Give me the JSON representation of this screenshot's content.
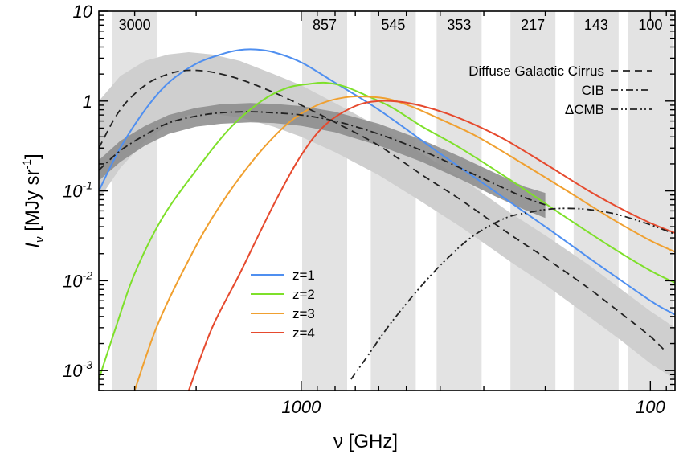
{
  "chart_data": {
    "type": "line",
    "title": "",
    "xlabel": "ν [GHz]",
    "ylabel_main": "I",
    "ylabel_sub": "ν",
    "ylabel_unit": " [MJy sr",
    "ylabel_unit_sup": "-1",
    "ylabel_close": "]",
    "x_scale": "log-reversed",
    "y_scale": "log",
    "xlim_ghz": [
      3800,
      85
    ],
    "ylim": [
      0.0006,
      10
    ],
    "x_ticks": [
      {
        "value": 1000,
        "label": "1000"
      },
      {
        "value": 100,
        "label": "100"
      }
    ],
    "y_ticks": [
      {
        "value": 10,
        "base": "10",
        "exp": ""
      },
      {
        "value": 1,
        "base": "1",
        "exp": ""
      },
      {
        "value": 0.1,
        "base": "10",
        "exp": "-1"
      },
      {
        "value": 0.01,
        "base": "10",
        "exp": "-2"
      },
      {
        "value": 0.001,
        "base": "10",
        "exp": "-3"
      }
    ],
    "bands": [
      {
        "label": "3000",
        "center": 3000
      },
      {
        "label": "857",
        "center": 857
      },
      {
        "label": "545",
        "center": 545
      },
      {
        "label": "353",
        "center": 353
      },
      {
        "label": "217",
        "center": 217
      },
      {
        "label": "143",
        "center": 143
      },
      {
        "label": "100",
        "center": 100
      }
    ],
    "series": [
      {
        "name": "z=1",
        "color": "#4f8ff0",
        "style": "solid",
        "points": [
          [
            3800,
            0.1
          ],
          [
            3300,
            0.3
          ],
          [
            2800,
            0.8
          ],
          [
            2400,
            1.6
          ],
          [
            2000,
            2.6
          ],
          [
            1700,
            3.3
          ],
          [
            1500,
            3.7
          ],
          [
            1350,
            3.75
          ],
          [
            1200,
            3.5
          ],
          [
            1000,
            2.7
          ],
          [
            800,
            1.6
          ],
          [
            600,
            0.8
          ],
          [
            400,
            0.26
          ],
          [
            300,
            0.12
          ],
          [
            200,
            0.04
          ],
          [
            150,
            0.018
          ],
          [
            100,
            0.006
          ],
          [
            85,
            0.0042
          ]
        ]
      },
      {
        "name": "z=2",
        "color": "#7ee02a",
        "style": "solid",
        "points": [
          [
            3800,
            0.0008
          ],
          [
            3400,
            0.003
          ],
          [
            3000,
            0.012
          ],
          [
            2500,
            0.05
          ],
          [
            2000,
            0.17
          ],
          [
            1600,
            0.5
          ],
          [
            1300,
            1.0
          ],
          [
            1100,
            1.4
          ],
          [
            950,
            1.55
          ],
          [
            850,
            1.6
          ],
          [
            750,
            1.45
          ],
          [
            650,
            1.15
          ],
          [
            550,
            0.85
          ],
          [
            450,
            0.52
          ],
          [
            350,
            0.3
          ],
          [
            250,
            0.13
          ],
          [
            180,
            0.055
          ],
          [
            130,
            0.024
          ],
          [
            100,
            0.013
          ],
          [
            85,
            0.0095
          ]
        ]
      },
      {
        "name": "z=3",
        "color": "#f0a030",
        "style": "solid",
        "points": [
          [
            3000,
            0.0006
          ],
          [
            2600,
            0.003
          ],
          [
            2200,
            0.012
          ],
          [
            1800,
            0.05
          ],
          [
            1400,
            0.2
          ],
          [
            1100,
            0.55
          ],
          [
            900,
            0.9
          ],
          [
            750,
            1.1
          ],
          [
            650,
            1.12
          ],
          [
            560,
            1.05
          ],
          [
            480,
            0.86
          ],
          [
            400,
            0.63
          ],
          [
            320,
            0.42
          ],
          [
            250,
            0.24
          ],
          [
            180,
            0.11
          ],
          [
            130,
            0.05
          ],
          [
            100,
            0.028
          ],
          [
            85,
            0.021
          ]
        ]
      },
      {
        "name": "z=4",
        "color": "#e64a2e",
        "style": "solid",
        "points": [
          [
            2100,
            0.0006
          ],
          [
            1800,
            0.003
          ],
          [
            1500,
            0.012
          ],
          [
            1200,
            0.07
          ],
          [
            1000,
            0.25
          ],
          [
            850,
            0.55
          ],
          [
            700,
            0.88
          ],
          [
            600,
            1.0
          ],
          [
            520,
            0.98
          ],
          [
            450,
            0.88
          ],
          [
            380,
            0.72
          ],
          [
            320,
            0.55
          ],
          [
            260,
            0.37
          ],
          [
            200,
            0.2
          ],
          [
            150,
            0.1
          ],
          [
            120,
            0.062
          ],
          [
            100,
            0.044
          ],
          [
            85,
            0.034
          ]
        ]
      },
      {
        "name": "Diffuse Galactic Cirrus",
        "color": "#222222",
        "style": "dashed",
        "points": [
          [
            3800,
            0.3
          ],
          [
            3300,
            0.8
          ],
          [
            2800,
            1.5
          ],
          [
            2400,
            2.0
          ],
          [
            2100,
            2.2
          ],
          [
            1800,
            2.1
          ],
          [
            1500,
            1.75
          ],
          [
            1200,
            1.25
          ],
          [
            1000,
            0.9
          ],
          [
            800,
            0.58
          ],
          [
            600,
            0.32
          ],
          [
            450,
            0.15
          ],
          [
            350,
            0.08
          ],
          [
            250,
            0.032
          ],
          [
            200,
            0.018
          ],
          [
            150,
            0.0082
          ],
          [
            120,
            0.0042
          ],
          [
            100,
            0.0024
          ],
          [
            90,
            0.0016
          ]
        ]
      },
      {
        "name": "CIB",
        "color": "#222222",
        "style": "dashdot",
        "points": [
          [
            3800,
            0.17
          ],
          [
            3300,
            0.28
          ],
          [
            2800,
            0.42
          ],
          [
            2400,
            0.57
          ],
          [
            2000,
            0.68
          ],
          [
            1700,
            0.74
          ],
          [
            1400,
            0.76
          ],
          [
            1200,
            0.74
          ],
          [
            1000,
            0.7
          ],
          [
            800,
            0.6
          ],
          [
            600,
            0.43
          ],
          [
            450,
            0.28
          ],
          [
            350,
            0.18
          ],
          [
            280,
            0.12
          ],
          [
            230,
            0.085
          ],
          [
            200,
            0.07
          ]
        ]
      },
      {
        "name": "ΔCMB",
        "color": "#222222",
        "style": "dashdotdot",
        "points": [
          [
            720,
            0.0008
          ],
          [
            650,
            0.0014
          ],
          [
            550,
            0.0035
          ],
          [
            450,
            0.009
          ],
          [
            380,
            0.018
          ],
          [
            320,
            0.032
          ],
          [
            260,
            0.05
          ],
          [
            220,
            0.058
          ],
          [
            200,
            0.062
          ],
          [
            175,
            0.064
          ],
          [
            150,
            0.062
          ],
          [
            125,
            0.055
          ],
          [
            100,
            0.042
          ],
          [
            85,
            0.033
          ]
        ]
      }
    ],
    "uncertainty_bands": [
      {
        "for": "Diffuse Galactic Cirrus",
        "color": "#cfcfcf",
        "upper": [
          [
            3800,
            1.0
          ],
          [
            3300,
            1.9
          ],
          [
            2800,
            2.8
          ],
          [
            2400,
            3.3
          ],
          [
            2100,
            3.5
          ],
          [
            1800,
            3.3
          ],
          [
            1500,
            2.8
          ],
          [
            1200,
            2.0
          ],
          [
            1000,
            1.5
          ],
          [
            800,
            0.95
          ],
          [
            600,
            0.52
          ],
          [
            450,
            0.26
          ],
          [
            350,
            0.14
          ],
          [
            250,
            0.056
          ],
          [
            200,
            0.032
          ],
          [
            150,
            0.015
          ],
          [
            120,
            0.0078
          ],
          [
            100,
            0.0046
          ],
          [
            85,
            0.003
          ]
        ],
        "lower": [
          [
            3800,
            0.08
          ],
          [
            3300,
            0.18
          ],
          [
            2800,
            0.36
          ],
          [
            2400,
            0.55
          ],
          [
            2100,
            0.7
          ],
          [
            1800,
            0.72
          ],
          [
            1500,
            0.66
          ],
          [
            1200,
            0.52
          ],
          [
            1000,
            0.4
          ],
          [
            800,
            0.27
          ],
          [
            600,
            0.15
          ],
          [
            450,
            0.075
          ],
          [
            350,
            0.04
          ],
          [
            250,
            0.016
          ],
          [
            200,
            0.009
          ],
          [
            150,
            0.004
          ],
          [
            120,
            0.0021
          ],
          [
            100,
            0.0012
          ],
          [
            85,
            0.0008
          ]
        ]
      },
      {
        "for": "CIB",
        "color": "#8a8a8a",
        "upper": [
          [
            3800,
            0.22
          ],
          [
            3300,
            0.36
          ],
          [
            2800,
            0.53
          ],
          [
            2400,
            0.7
          ],
          [
            2000,
            0.84
          ],
          [
            1700,
            0.92
          ],
          [
            1400,
            0.95
          ],
          [
            1200,
            0.93
          ],
          [
            1000,
            0.88
          ],
          [
            800,
            0.76
          ],
          [
            600,
            0.56
          ],
          [
            450,
            0.37
          ],
          [
            350,
            0.24
          ],
          [
            280,
            0.16
          ],
          [
            230,
            0.112
          ],
          [
            200,
            0.095
          ]
        ],
        "lower": [
          [
            3800,
            0.13
          ],
          [
            3300,
            0.21
          ],
          [
            2800,
            0.32
          ],
          [
            2400,
            0.43
          ],
          [
            2000,
            0.52
          ],
          [
            1700,
            0.56
          ],
          [
            1400,
            0.58
          ],
          [
            1200,
            0.57
          ],
          [
            1000,
            0.53
          ],
          [
            800,
            0.45
          ],
          [
            600,
            0.32
          ],
          [
            450,
            0.21
          ],
          [
            350,
            0.135
          ],
          [
            280,
            0.088
          ],
          [
            230,
            0.062
          ],
          [
            200,
            0.05
          ]
        ]
      }
    ],
    "legend_lines": {
      "placement": "lower-left",
      "entries": [
        "z=1",
        "z=2",
        "z=3",
        "z=4"
      ]
    },
    "legend_black": {
      "placement": "top-right",
      "entries": [
        {
          "label": "Diffuse Galactic Cirrus",
          "style": "dashed"
        },
        {
          "label": "CIB",
          "style": "dashdot"
        },
        {
          "label": "ΔCMB",
          "style": "dashdotdot"
        }
      ]
    },
    "grid": false
  }
}
